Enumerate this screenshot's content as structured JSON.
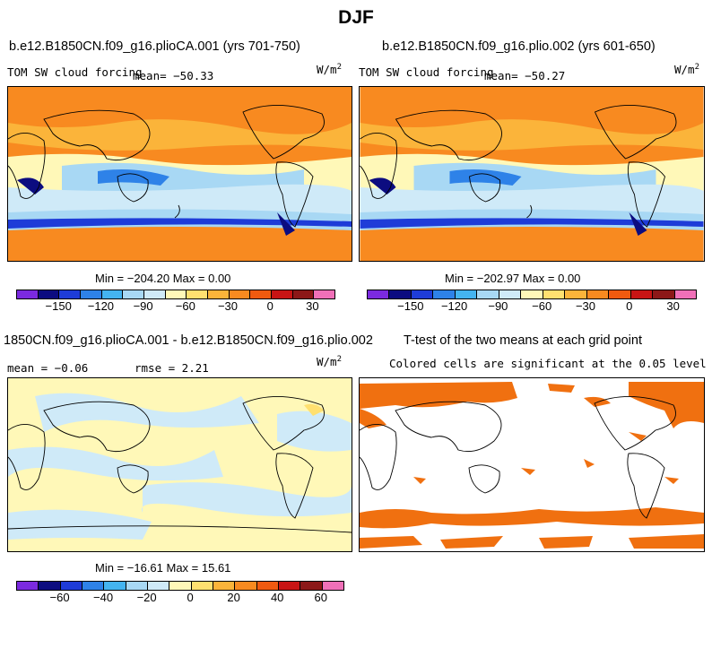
{
  "page_title": "DJF",
  "panels": {
    "top_left": {
      "case": "b.e12.B1850CN.f09_g16.plioCA.001 (yrs 701-750)",
      "variable": "TOM SW cloud forcing",
      "mean": "mean= −50.33",
      "units": "W/m",
      "units_sup": "2",
      "minmax": "Min = −204.20 Max =    0.00"
    },
    "top_right": {
      "case": "b.e12.B1850CN.f09_g16.plio.002 (yrs 601-650)",
      "variable": "TOM SW cloud forcing",
      "mean": "mean= −50.27",
      "units": "W/m",
      "units_sup": "2",
      "minmax": "Min = −202.97 Max =    0.00"
    },
    "bottom_left": {
      "case": "1850CN.f09_g16.plioCA.001 - b.e12.B1850CN.f09_g16.plio.002",
      "mean": "mean =  −0.06",
      "rmse": "rmse =   2.21",
      "units": "W/m",
      "units_sup": "2",
      "minmax": "Min = −16.61 Max =  15.61"
    },
    "bottom_right": {
      "title": "T-test of the two means at each grid point",
      "subtitle": "Colored cells are significant at the 0.05 level"
    }
  },
  "colorbar_top": {
    "colors": [
      "#7b2ae0",
      "#0c0c80",
      "#1e3cd8",
      "#2e82e8",
      "#44b4f0",
      "#a8d8f4",
      "#cfeaf8",
      "#fff8b8",
      "#ffe070",
      "#fbb43a",
      "#f88a20",
      "#f05a10",
      "#c81414",
      "#8c1818",
      "#f070b8"
    ],
    "ticks": [
      "−150",
      "−120",
      "−90",
      "−60",
      "−30",
      "0",
      "30"
    ]
  },
  "colorbar_bottom": {
    "colors": [
      "#7b2ae0",
      "#0c0c80",
      "#1e3cd8",
      "#2e82e8",
      "#44b4f0",
      "#a8d8f4",
      "#cfeaf8",
      "#fff8b8",
      "#ffe070",
      "#fbb43a",
      "#f88a20",
      "#f05a10",
      "#c81414",
      "#8c1818",
      "#f070b8"
    ],
    "ticks": [
      "−60",
      "−40",
      "−20",
      "0",
      "20",
      "40",
      "60"
    ]
  },
  "map_colors": {
    "ocean_orange": "#f88a20",
    "light_orange": "#fbb43a",
    "yellow": "#ffe070",
    "pale_yellow": "#fff8b8",
    "pale_blue": "#cfeaf8",
    "light_blue": "#a8d8f4",
    "blue": "#2e82e8",
    "dark_blue": "#0c0c80",
    "signif": "#f07010"
  }
}
